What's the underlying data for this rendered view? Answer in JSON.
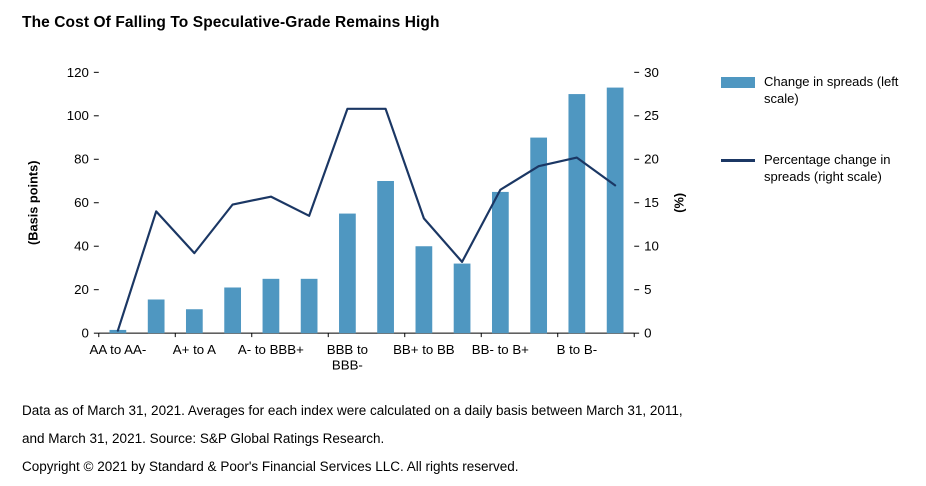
{
  "title": "The Cost Of Falling To Speculative-Grade Remains High",
  "legend": {
    "bar_label": "Change in spreads (left scale)",
    "line_label": "Percentage change in spreads (right scale)"
  },
  "footnotes": [
    "Data as of March 31, 2021. Averages for each index were calculated on a daily basis between March 31, 2011,",
    "and March 31, 2021. Source: S&P Global Ratings Research.",
    "Copyright © 2021 by Standard & Poor's Financial Services LLC. All rights reserved."
  ],
  "colors": {
    "bar": "#4f97c1",
    "line": "#1b3764"
  },
  "chart_data": {
    "type": "bar",
    "subtype": "combo-bar-line",
    "title": "The Cost Of Falling To Speculative-Grade Remains High",
    "n_bars": 14,
    "x_tick_labels": [
      {
        "index": 0,
        "label": "AA to AA-"
      },
      {
        "index": 2,
        "label": "A+ to A"
      },
      {
        "index": 4,
        "label": "A- to BBB+"
      },
      {
        "index": 6,
        "label": "BBB to\nBBB-"
      },
      {
        "index": 8,
        "label": "BB+ to BB"
      },
      {
        "index": 10,
        "label": "BB- to B+"
      },
      {
        "index": 12,
        "label": "B to B-"
      }
    ],
    "series": [
      {
        "name": "Change in spreads (left scale)",
        "kind": "bar",
        "axis": "left",
        "values": [
          1.5,
          15.5,
          11,
          21,
          25,
          25,
          55,
          70,
          40,
          32,
          65,
          90,
          110,
          113
        ]
      },
      {
        "name": "Percentage change in spreads (right scale)",
        "kind": "line",
        "axis": "right",
        "values": [
          0.3,
          14,
          9.2,
          14.8,
          15.7,
          13.5,
          25.8,
          25.8,
          13.2,
          8.2,
          16.5,
          19.2,
          20.2,
          17
        ]
      }
    ],
    "left_axis": {
      "label": "(Basis points)",
      "ticks": [
        0,
        20,
        40,
        60,
        80,
        100,
        120
      ],
      "min": 0,
      "max": 120
    },
    "right_axis": {
      "label": "(%)",
      "ticks": [
        0,
        5,
        10,
        15,
        20,
        25,
        30
      ],
      "min": 0,
      "max": 30
    },
    "grid": false,
    "legend_position": "right"
  }
}
